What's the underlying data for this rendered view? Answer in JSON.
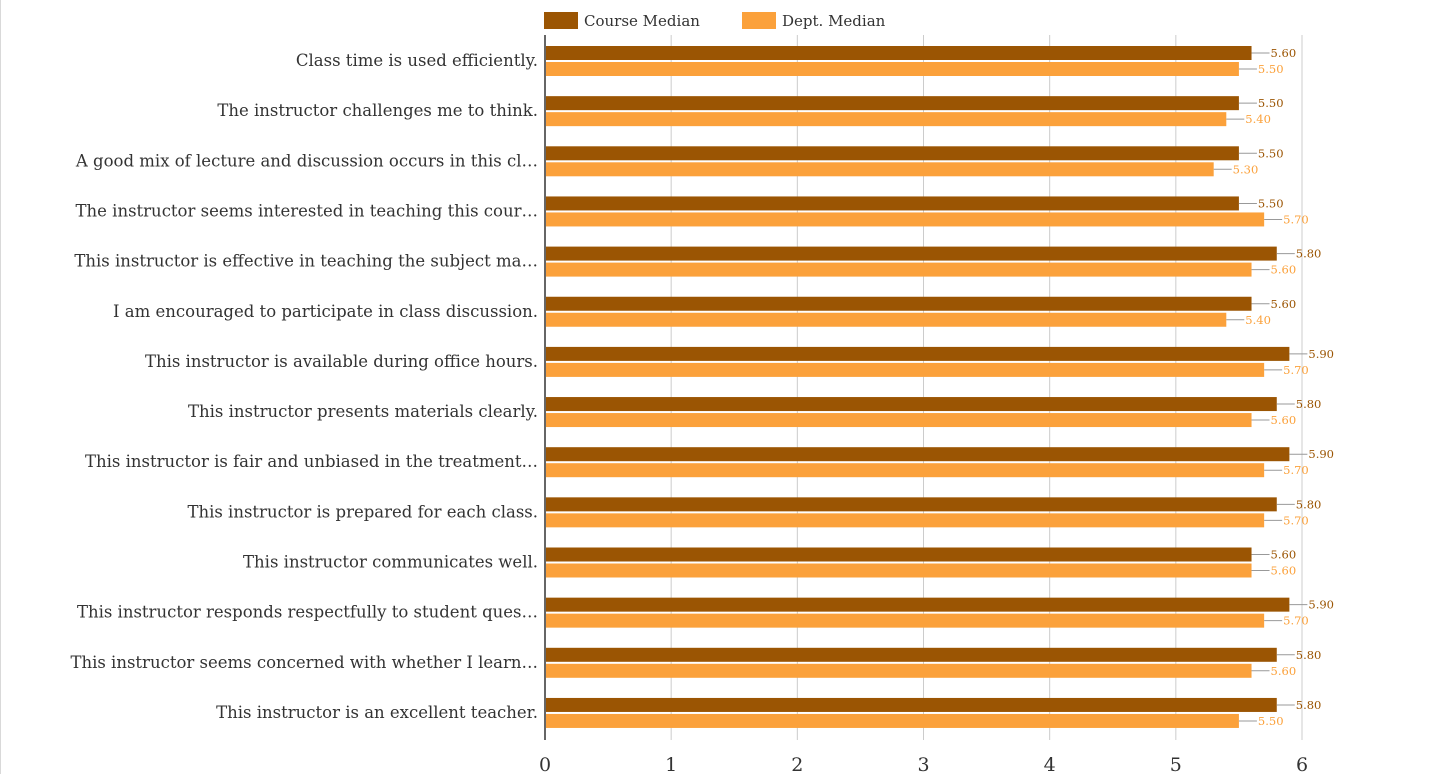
{
  "colors": {
    "course": "#9b5503",
    "dept": "#fba13b",
    "grid": "#cccccc",
    "axis": "#333333",
    "text": "#333333"
  },
  "chart_data": {
    "type": "bar",
    "orientation": "horizontal",
    "legend_position": "top-left",
    "grid": true,
    "xlim": [
      0,
      6
    ],
    "x_ticks": [
      "0",
      "1",
      "2",
      "3",
      "4",
      "5",
      "6"
    ],
    "categories": [
      "Class time is used efficiently.",
      "The instructor challenges me to think.",
      "A good mix of lecture and discussion occurs in this cl…",
      "The instructor seems interested in teaching this cour…",
      "This instructor is effective in teaching the subject ma…",
      "I am encouraged to participate in class discussion.",
      "This instructor is available during office hours.",
      "This instructor presents materials clearly.",
      "This instructor is fair and unbiased in the treatment…",
      "This instructor is prepared for each class.",
      "This instructor communicates well.",
      "This instructor responds respectfully to student ques…",
      "This instructor seems concerned with whether I learn…",
      "This instructor is an excellent teacher."
    ],
    "series": [
      {
        "name": "Course Median",
        "values": [
          5.6,
          5.5,
          5.5,
          5.5,
          5.8,
          5.6,
          5.9,
          5.8,
          5.9,
          5.8,
          5.6,
          5.9,
          5.8,
          5.8
        ],
        "labels": [
          "5.60",
          "5.50",
          "5.50",
          "5.50",
          "5.80",
          "5.60",
          "5.90",
          "5.80",
          "5.90",
          "5.80",
          "5.60",
          "5.90",
          "5.80",
          "5.80"
        ]
      },
      {
        "name": "Dept. Median",
        "values": [
          5.5,
          5.4,
          5.3,
          5.7,
          5.6,
          5.4,
          5.7,
          5.6,
          5.7,
          5.7,
          5.6,
          5.7,
          5.6,
          5.5
        ],
        "labels": [
          "5.50",
          "5.40",
          "5.30",
          "5.70",
          "5.60",
          "5.40",
          "5.70",
          "5.60",
          "5.70",
          "5.70",
          "5.60",
          "5.70",
          "5.60",
          "5.50"
        ]
      }
    ]
  }
}
